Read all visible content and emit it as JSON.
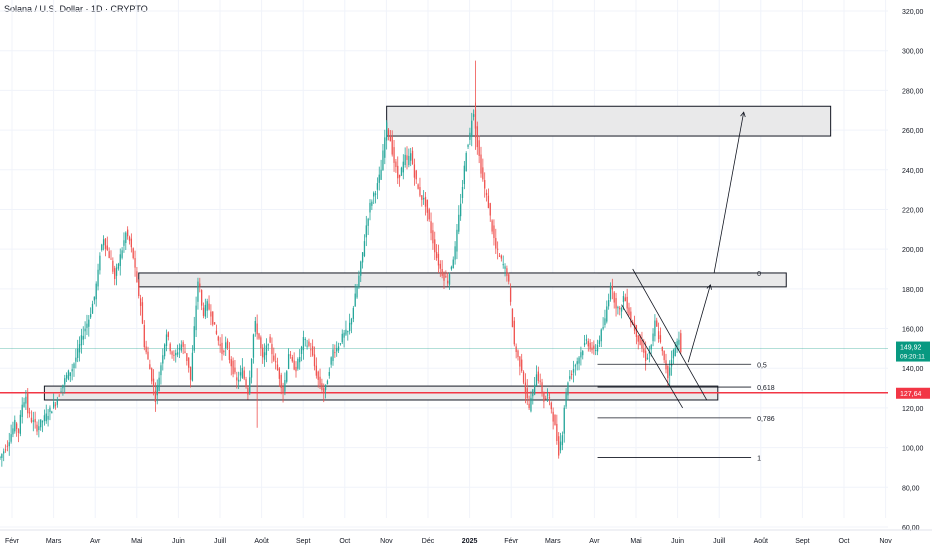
{
  "header": {
    "title": "Solana / U.S. Dollar · 1D · CRYPTO"
  },
  "colors": {
    "up": "#26a69a",
    "down": "#ef5350",
    "grid": "#f0f3fa",
    "axis_text": "#131722",
    "support_line": "#f23645",
    "current_price": "#089981",
    "zone_fill": "#e9e9ea",
    "zone_border": "#131722"
  },
  "chart_data": {
    "type": "candlestick",
    "title": "Solana / U.S. Dollar · 1D · CRYPTO",
    "xlabel": "",
    "ylabel": "",
    "ylim": [
      60,
      320
    ],
    "y_ticks": [
      "320,00",
      "300,00",
      "280,00",
      "260,00",
      "240,00",
      "220,00",
      "200,00",
      "180,00",
      "160,00",
      "140,00",
      "120,00",
      "100,00",
      "80,00",
      "60,00"
    ],
    "x_ticks": [
      "Févr",
      "Mars",
      "Avr",
      "Mai",
      "Juin",
      "Juill",
      "Août",
      "Sept",
      "Oct",
      "Nov",
      "Déc",
      "2025",
      "Févr",
      "Mars",
      "Avr",
      "Mai",
      "Juin",
      "Juill",
      "Août",
      "Sept",
      "Oct",
      "Nov"
    ],
    "grid": true,
    "current_price": {
      "value": 149.92,
      "label": "149,92",
      "countdown": "09:20:11"
    },
    "support_line": {
      "value": 127.64,
      "label": "127,64"
    },
    "price_path": [
      [
        0,
        95
      ],
      [
        4,
        102
      ],
      [
        8,
        112
      ],
      [
        10,
        108
      ],
      [
        12,
        122
      ],
      [
        14,
        126
      ],
      [
        15,
        118
      ],
      [
        17,
        114
      ],
      [
        20,
        110
      ],
      [
        25,
        116
      ],
      [
        28,
        120
      ],
      [
        31,
        125
      ],
      [
        33,
        130
      ],
      [
        36,
        136
      ],
      [
        39,
        140
      ],
      [
        42,
        148
      ],
      [
        45,
        158
      ],
      [
        48,
        165
      ],
      [
        51,
        176
      ],
      [
        53,
        188
      ],
      [
        54,
        198
      ],
      [
        56,
        206
      ],
      [
        57,
        202
      ],
      [
        60,
        194
      ],
      [
        62,
        185
      ],
      [
        64,
        193
      ],
      [
        66,
        200
      ],
      [
        68,
        208
      ],
      [
        70,
        204
      ],
      [
        72,
        196
      ],
      [
        74,
        182
      ],
      [
        76,
        172
      ],
      [
        77,
        162
      ],
      [
        78,
        152
      ],
      [
        80,
        144
      ],
      [
        82,
        135
      ],
      [
        84,
        125
      ],
      [
        86,
        136
      ],
      [
        88,
        148
      ],
      [
        90,
        158
      ],
      [
        92,
        150
      ],
      [
        94,
        145
      ],
      [
        96,
        149
      ],
      [
        98,
        152
      ],
      [
        100,
        148
      ],
      [
        102,
        141
      ],
      [
        103,
        134
      ],
      [
        104,
        147
      ],
      [
        105,
        160
      ],
      [
        106,
        172
      ],
      [
        107,
        184
      ],
      [
        108,
        180
      ],
      [
        109,
        171
      ],
      [
        110,
        168
      ],
      [
        112,
        172
      ],
      [
        114,
        168
      ],
      [
        116,
        160
      ],
      [
        118,
        154
      ],
      [
        120,
        148
      ],
      [
        122,
        152
      ],
      [
        124,
        145
      ],
      [
        126,
        139
      ],
      [
        128,
        133
      ],
      [
        130,
        137
      ],
      [
        131,
        139
      ],
      [
        132,
        135
      ],
      [
        134,
        128
      ],
      [
        136,
        146
      ],
      [
        137,
        157
      ],
      [
        138,
        162
      ],
      [
        140,
        155
      ],
      [
        142,
        144
      ],
      [
        144,
        150
      ],
      [
        145,
        154
      ],
      [
        147,
        148
      ],
      [
        149,
        142
      ],
      [
        151,
        136
      ],
      [
        153,
        128
      ],
      [
        155,
        140
      ],
      [
        156,
        148
      ],
      [
        158,
        142
      ],
      [
        160,
        140
      ],
      [
        162,
        146
      ],
      [
        164,
        154
      ],
      [
        166,
        152
      ],
      [
        168,
        150
      ],
      [
        170,
        141
      ],
      [
        172,
        134
      ],
      [
        174,
        130
      ],
      [
        175,
        128
      ],
      [
        176,
        130
      ],
      [
        178,
        140
      ],
      [
        180,
        149
      ],
      [
        182,
        150
      ],
      [
        184,
        154
      ],
      [
        186,
        157
      ],
      [
        188,
        158
      ],
      [
        190,
        166
      ],
      [
        192,
        176
      ],
      [
        194,
        186
      ],
      [
        196,
        198
      ],
      [
        198,
        212
      ],
      [
        200,
        222
      ],
      [
        202,
        228
      ],
      [
        204,
        232
      ],
      [
        206,
        240
      ],
      [
        207,
        248
      ],
      [
        208,
        256
      ],
      [
        209,
        262
      ],
      [
        211,
        255
      ],
      [
        213,
        244
      ],
      [
        215,
        236
      ],
      [
        217,
        240
      ],
      [
        219,
        246
      ],
      [
        220,
        244
      ],
      [
        222,
        248
      ],
      [
        224,
        238
      ],
      [
        226,
        230
      ],
      [
        228,
        226
      ],
      [
        230,
        223
      ],
      [
        232,
        214
      ],
      [
        234,
        204
      ],
      [
        236,
        196
      ],
      [
        238,
        190
      ],
      [
        240,
        186
      ],
      [
        242,
        184
      ],
      [
        244,
        192
      ],
      [
        246,
        200
      ],
      [
        248,
        216
      ],
      [
        250,
        232
      ],
      [
        252,
        250
      ],
      [
        254,
        258
      ],
      [
        255,
        266
      ],
      [
        256,
        270
      ],
      [
        257,
        262
      ],
      [
        258,
        253
      ],
      [
        260,
        240
      ],
      [
        262,
        230
      ],
      [
        264,
        222
      ],
      [
        266,
        210
      ],
      [
        268,
        200
      ],
      [
        270,
        196
      ],
      [
        272,
        192
      ],
      [
        274,
        188
      ],
      [
        275,
        182
      ],
      [
        276,
        172
      ],
      [
        277,
        162
      ],
      [
        278,
        152
      ],
      [
        280,
        145
      ],
      [
        282,
        140
      ],
      [
        284,
        128
      ],
      [
        286,
        120
      ],
      [
        288,
        128
      ],
      [
        290,
        138
      ],
      [
        292,
        132
      ],
      [
        294,
        124
      ],
      [
        296,
        126
      ],
      [
        298,
        120
      ],
      [
        300,
        110
      ],
      [
        302,
        98
      ],
      [
        304,
        108
      ],
      [
        305,
        121
      ],
      [
        306,
        127
      ],
      [
        307,
        134
      ],
      [
        309,
        138
      ],
      [
        311,
        142
      ],
      [
        313,
        146
      ],
      [
        315,
        150
      ],
      [
        317,
        154
      ],
      [
        319,
        151
      ],
      [
        321,
        148
      ],
      [
        323,
        152
      ],
      [
        325,
        158
      ],
      [
        327,
        164
      ],
      [
        328,
        171
      ],
      [
        329,
        176
      ],
      [
        330,
        183
      ],
      [
        331,
        178
      ],
      [
        333,
        172
      ],
      [
        335,
        168
      ],
      [
        337,
        176
      ],
      [
        339,
        172
      ],
      [
        341,
        164
      ],
      [
        343,
        160
      ],
      [
        345,
        155
      ],
      [
        347,
        150
      ],
      [
        349,
        145
      ],
      [
        351,
        148
      ],
      [
        353,
        156
      ],
      [
        354,
        163
      ],
      [
        355,
        160
      ],
      [
        357,
        152
      ],
      [
        359,
        143
      ],
      [
        360,
        140
      ],
      [
        361,
        136
      ],
      [
        362,
        141
      ],
      [
        363,
        146
      ],
      [
        365,
        150
      ],
      [
        367,
        156
      ],
      [
        368,
        150
      ]
    ],
    "zones": [
      {
        "name": "top-resistance-zone",
        "from_index": 209,
        "to_index": 449,
        "low": 257,
        "high": 272
      },
      {
        "name": "mid-resistance-zone",
        "from_index": 75,
        "to_index": 425,
        "low": 181,
        "high": 188
      },
      {
        "name": "low-support-zone",
        "from_index": 24,
        "to_index": 388,
        "low": 124,
        "high": 131
      }
    ],
    "fib_levels": [
      {
        "label": "0",
        "value": 188,
        "from_index": 323,
        "to_index": 406
      },
      {
        "label": "0,5",
        "value": 142,
        "from_index": 323,
        "to_index": 406
      },
      {
        "label": "0,618",
        "value": 130.5,
        "from_index": 323,
        "to_index": 406
      },
      {
        "label": "0,786",
        "value": 115,
        "from_index": 323,
        "to_index": 406
      },
      {
        "label": "1",
        "value": 95,
        "from_index": 323,
        "to_index": 406
      }
    ],
    "channel_lines": [
      {
        "from": [
          342,
          190
        ],
        "to": [
          382,
          124
        ]
      },
      {
        "from": [
          336,
          172
        ],
        "to": [
          369,
          120
        ]
      }
    ],
    "projection_arrows": [
      {
        "from": [
          372,
          143
        ],
        "to": [
          384,
          182
        ]
      },
      {
        "from": [
          386,
          188
        ],
        "to": [
          402,
          269
        ]
      }
    ]
  }
}
